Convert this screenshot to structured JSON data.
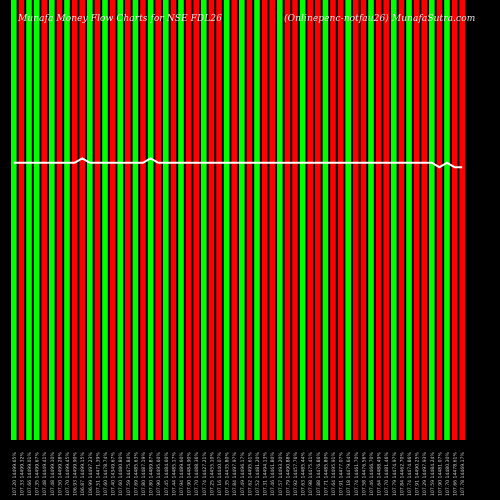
{
  "header": {
    "title": "Munafa Money Flow Charts for NSE FDL26",
    "website": "(Onlinepenc-notfau26) MunafaSutra.com"
  },
  "colors": {
    "background": "#000000",
    "up": "#00ff00",
    "down": "#ff0000",
    "grid": "#8b4f00",
    "price_line": "#ffffff",
    "label": "#d0d0d0"
  },
  "chart_data": {
    "type": "bar",
    "values": [
      100,
      100,
      100,
      100,
      100,
      100,
      100,
      100,
      100,
      100,
      100,
      100,
      100,
      100,
      100,
      100,
      100,
      100,
      100,
      100,
      100,
      100,
      100,
      100,
      100,
      100,
      100,
      100,
      100,
      100,
      100,
      100,
      100,
      100,
      100,
      100,
      100,
      100,
      100,
      100,
      100,
      100,
      100,
      100,
      100,
      100,
      100,
      100,
      100,
      100,
      100,
      100,
      100,
      100,
      100,
      100,
      100,
      100,
      100,
      100
    ],
    "direction": [
      "up",
      "down",
      "up",
      "up",
      "down",
      "up",
      "down",
      "up",
      "down",
      "down",
      "up",
      "down",
      "up",
      "down",
      "up",
      "down",
      "up",
      "down",
      "up",
      "down",
      "up",
      "down",
      "up",
      "down",
      "down",
      "up",
      "down",
      "down",
      "up",
      "down",
      "up",
      "down",
      "up",
      "down",
      "down",
      "up",
      "down",
      "down",
      "up",
      "down",
      "down",
      "up",
      "down",
      "down",
      "up",
      "down",
      "down",
      "up",
      "down",
      "down",
      "up",
      "down",
      "up",
      "down",
      "down",
      "up",
      "down",
      "up",
      "down",
      "down"
    ],
    "price_line": [
      0.63,
      0.63,
      0.63,
      0.63,
      0.63,
      0.63,
      0.63,
      0.63,
      0.63,
      0.64,
      0.63,
      0.63,
      0.63,
      0.63,
      0.63,
      0.63,
      0.63,
      0.63,
      0.64,
      0.63,
      0.63,
      0.63,
      0.63,
      0.63,
      0.63,
      0.63,
      0.63,
      0.63,
      0.63,
      0.63,
      0.63,
      0.63,
      0.63,
      0.63,
      0.63,
      0.63,
      0.63,
      0.63,
      0.63,
      0.63,
      0.63,
      0.63,
      0.63,
      0.63,
      0.63,
      0.63,
      0.63,
      0.63,
      0.63,
      0.63,
      0.63,
      0.63,
      0.63,
      0.63,
      0.63,
      0.63,
      0.62,
      0.63,
      0.62,
      0.62
    ],
    "grid": true,
    "x_labels": [
      "107.20 14499.65%",
      "107.33 14499.32%",
      "107.66 14499.01%",
      "107.35 14499.67%",
      "107.48 14449.41%",
      "107.48 14499.10%",
      "107.50 14499.28%",
      "107.70 14499.45%",
      "106.93 14499.90%",
      "106.87 14499.15%",
      "106.99 14497.23%",
      "107.51 14471.39%",
      "107.60 14478.74%",
      "107.40 14349.67%",
      "107.60 14480.80%",
      "107.59 14475.84%",
      "107.69 14485.63%",
      "107.80 14487.19%",
      "107.80 14489.87%",
      "107.90 14495.60%",
      "107.45 14484.60%",
      "107.44 14485.17%",
      "107.94 14489.60%",
      "107.90 14484.90%",
      "107.70 14488.36%",
      "107.74 14427.21%",
      "107.25 14455.10%",
      "107.16 14440.07%",
      "107.35 14435.80%",
      "107.84 14497.97%",
      "107.49 14496.17%",
      "107.62 14495.61%",
      "107.52 14481.20%",
      "107.31 14494.13%",
      "107.46 14461.80%",
      "107.57 14493.20%",
      "107.79 14490.88%",
      "107.92 14457.76%",
      "107.63 14485.44%",
      "107.98 14475.41%",
      "107.88 14476.86%",
      "107.71 14485.80%",
      "107.64 14495.91%",
      "107.91 14477.07%",
      "107.18 14479.64%",
      "107.74 14461.70%",
      "107.58 14476.56%",
      "107.46 14466.70%",
      "107.64 14488.49%",
      "107.70 14481.46%",
      "107.79 14474.97%",
      "107.84 14462.70%",
      "107.74 14474.86%",
      "107.91 14490.25%",
      "107.29 14497.93%",
      "107.59 14484.24%",
      "107.90 14481.07%",
      "107.70 14480.30%",
      "107.66 14478.61%",
      "107.78 14469.17%"
    ]
  }
}
